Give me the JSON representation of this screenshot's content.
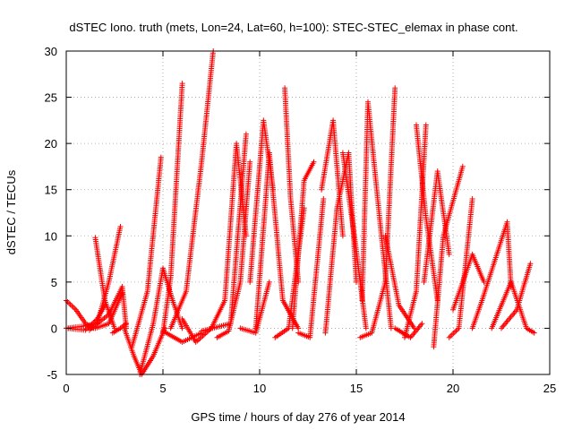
{
  "chart_data": {
    "type": "scatter",
    "title": "dSTEC Iono. truth (mets, Lon=24, Lat=60, h=100): STEC-STEC_elemax in phase cont.",
    "xlabel": "GPS time / hours of day 276 of year 2014",
    "ylabel": "dSTEC  / TECUs",
    "xlim": [
      0,
      25
    ],
    "ylim": [
      -5,
      30
    ],
    "xticks": [
      0,
      5,
      10,
      15,
      20,
      25
    ],
    "yticks": [
      -5,
      0,
      5,
      10,
      15,
      20,
      25,
      30
    ],
    "grid": true,
    "marker": "+",
    "color": "#ff0000",
    "series": [
      {
        "x": [
          0.0,
          0.5,
          1.0,
          1.4
        ],
        "y": [
          3.0,
          2.0,
          0.5,
          0.0
        ]
      },
      {
        "x": [
          0.0,
          0.8,
          1.6,
          2.2,
          2.8
        ],
        "y": [
          0.0,
          0.2,
          0.5,
          5.0,
          11.0
        ]
      },
      {
        "x": [
          0.0,
          1.0,
          1.6,
          2.0
        ],
        "y": [
          0.0,
          -0.2,
          1.0,
          2.5
        ]
      },
      {
        "x": [
          1.0,
          1.5,
          2.2,
          2.9
        ],
        "y": [
          0.3,
          0.0,
          0.5,
          3.8
        ]
      },
      {
        "x": [
          1.5,
          2.0,
          2.5
        ],
        "y": [
          9.8,
          3.0,
          0.0
        ]
      },
      {
        "x": [
          1.2,
          2.2,
          2.9,
          3.1
        ],
        "y": [
          -0.2,
          1.5,
          4.5,
          0.0
        ]
      },
      {
        "x": [
          2.4,
          2.8,
          3.1
        ],
        "y": [
          -0.5,
          0.0,
          0.5
        ]
      },
      {
        "x": [
          3.0,
          3.5,
          3.9,
          4.5,
          5.1
        ],
        "y": [
          0.0,
          -3.0,
          -5.0,
          -3.0,
          0.0
        ]
      },
      {
        "x": [
          3.4,
          4.2,
          4.9
        ],
        "y": [
          -2.0,
          4.0,
          18.5
        ]
      },
      {
        "x": [
          3.8,
          4.5,
          5.0,
          5.5,
          6.0
        ],
        "y": [
          -5.0,
          0.5,
          6.5,
          3.0,
          0.0
        ]
      },
      {
        "x": [
          5.0,
          5.4,
          6.0
        ],
        "y": [
          -0.5,
          5.5,
          26.5
        ]
      },
      {
        "x": [
          5.4,
          6.2,
          7.0,
          7.6
        ],
        "y": [
          0.0,
          4.0,
          18.0,
          30.0
        ]
      },
      {
        "x": [
          6.0,
          6.7,
          7.5
        ],
        "y": [
          1.0,
          -1.5,
          0.0
        ]
      },
      {
        "x": [
          5.0,
          6.0,
          7.0
        ],
        "y": [
          -0.3,
          -1.5,
          -0.5
        ]
      },
      {
        "x": [
          7.5,
          8.2,
          8.8,
          9.3
        ],
        "y": [
          0.0,
          3.0,
          20.0,
          10.0
        ]
      },
      {
        "x": [
          7.0,
          8.5,
          9.3
        ],
        "y": [
          -0.3,
          0.5,
          21.0
        ]
      },
      {
        "x": [
          7.8,
          8.4,
          9.0,
          9.5
        ],
        "y": [
          -1.0,
          -0.3,
          5.0,
          18.0
        ]
      },
      {
        "x": [
          9.0,
          9.8,
          10.5
        ],
        "y": [
          0.0,
          -0.5,
          5.0
        ]
      },
      {
        "x": [
          9.5,
          10.2,
          10.7
        ],
        "y": [
          5.0,
          22.5,
          15.0
        ]
      },
      {
        "x": [
          9.8,
          10.5,
          11.2,
          12.0
        ],
        "y": [
          0.0,
          19.0,
          3.0,
          0.0
        ]
      },
      {
        "x": [
          11.3,
          11.6,
          12.0
        ],
        "y": [
          26.0,
          14.0,
          5.0
        ]
      },
      {
        "x": [
          10.8,
          11.5,
          12.3
        ],
        "y": [
          -1.0,
          0.0,
          13.0
        ]
      },
      {
        "x": [
          11.7,
          12.3,
          12.8
        ],
        "y": [
          0.0,
          16.0,
          18.0
        ]
      },
      {
        "x": [
          12.0,
          12.6,
          13.3
        ],
        "y": [
          -0.5,
          -1.0,
          14.0
        ]
      },
      {
        "x": [
          13.2,
          13.8,
          14.3
        ],
        "y": [
          15.0,
          22.5,
          10.0
        ]
      },
      {
        "x": [
          13.4,
          14.0,
          14.6,
          15.0
        ],
        "y": [
          -0.5,
          13.0,
          19.0,
          5.0
        ]
      },
      {
        "x": [
          14.3,
          14.9,
          15.5
        ],
        "y": [
          19.0,
          10.0,
          0.0
        ]
      },
      {
        "x": [
          15.3,
          15.6,
          16.2,
          16.8
        ],
        "y": [
          3.0,
          24.5,
          12.0,
          0.0
        ]
      },
      {
        "x": [
          15.2,
          15.8,
          16.5,
          17.0
        ],
        "y": [
          -1.0,
          -0.5,
          5.0,
          26.0
        ]
      },
      {
        "x": [
          16.5,
          17.2,
          18.0
        ],
        "y": [
          10.0,
          2.5,
          0.0
        ]
      },
      {
        "x": [
          17.0,
          17.8,
          18.4
        ],
        "y": [
          0.0,
          -1.0,
          0.5
        ]
      },
      {
        "x": [
          17.5,
          18.1,
          18.6
        ],
        "y": [
          -1.0,
          4.0,
          22.0
        ]
      },
      {
        "x": [
          18.1,
          18.6,
          19.2
        ],
        "y": [
          22.0,
          12.0,
          3.0
        ]
      },
      {
        "x": [
          18.5,
          19.2,
          19.8
        ],
        "y": [
          5.0,
          17.0,
          8.0
        ]
      },
      {
        "x": [
          19.0,
          19.5,
          20.5
        ],
        "y": [
          -2.0,
          10.0,
          17.5
        ]
      },
      {
        "x": [
          19.8,
          20.3,
          21.0
        ],
        "y": [
          -1.0,
          0.0,
          14.0
        ]
      },
      {
        "x": [
          20.0,
          21.0,
          21.6
        ],
        "y": [
          2.0,
          8.0,
          5.0
        ]
      },
      {
        "x": [
          21.0,
          21.5,
          22.8,
          23.0
        ],
        "y": [
          0.0,
          3.0,
          11.5,
          4.5
        ]
      },
      {
        "x": [
          22.0,
          23.0,
          23.8,
          24.2
        ],
        "y": [
          0.0,
          5.0,
          0.0,
          -0.5
        ]
      },
      {
        "x": [
          22.5,
          23.3,
          24.0
        ],
        "y": [
          0.0,
          2.0,
          7.0
        ]
      }
    ]
  }
}
